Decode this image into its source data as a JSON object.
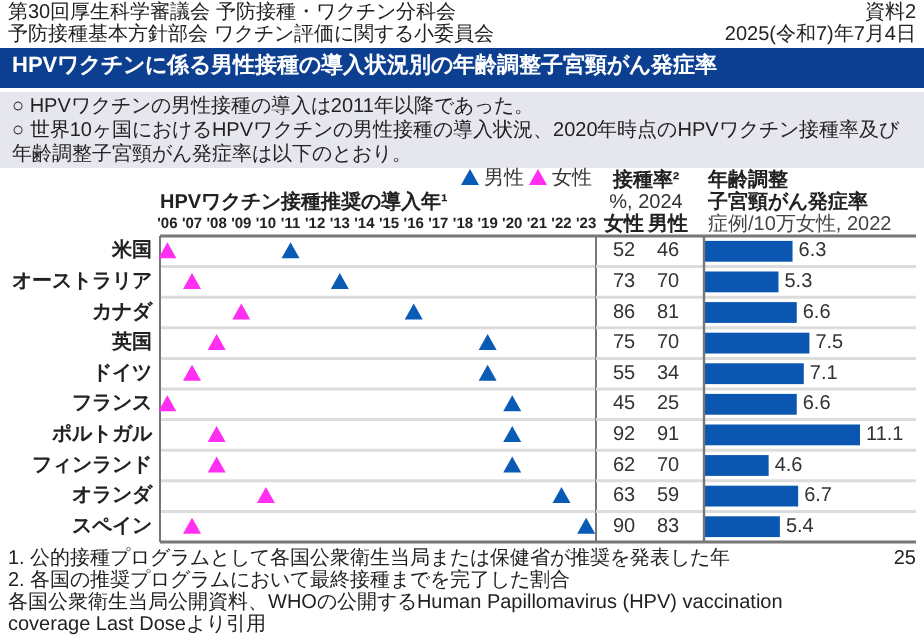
{
  "chart_data": [
    {
      "type": "scatter",
      "orientation": "horizontal",
      "title": "HPVワクチン接種推奨の導入年¹",
      "marker": "triangle",
      "legend": "top right",
      "grid": "y",
      "categories": [
        "米国",
        "オーストラリア",
        "カナダ",
        "英国",
        "ドイツ",
        "フランス",
        "ポルトガル",
        "フィンランド",
        "オランダ",
        "スペイン"
      ],
      "series": [
        {
          "name": "男性",
          "color": "#0a5bb5",
          "values": [
            2011,
            2013,
            2016,
            2019,
            2019,
            2020,
            2020,
            2020,
            2022,
            2023
          ]
        },
        {
          "name": "女性",
          "color": "#ff2ef0",
          "values": [
            2006,
            2007,
            2009,
            2008,
            2007,
            2006,
            2008,
            2008,
            2010,
            2007
          ]
        }
      ],
      "xlim": [
        2005.7,
        2023.4
      ],
      "xticks": [
        {
          "value": 2006,
          "label": "'06"
        },
        {
          "value": 2007,
          "label": "'07"
        },
        {
          "value": 2008,
          "label": "'08"
        },
        {
          "value": 2009,
          "label": "'09"
        },
        {
          "value": 2010,
          "label": "'10"
        },
        {
          "value": 2011,
          "label": "'11"
        },
        {
          "value": 2012,
          "label": "'12"
        },
        {
          "value": 2013,
          "label": "'13"
        },
        {
          "value": 2014,
          "label": "'14"
        },
        {
          "value": 2015,
          "label": "'15"
        },
        {
          "value": 2016,
          "label": "'16"
        },
        {
          "value": 2017,
          "label": "'17"
        },
        {
          "value": 2018,
          "label": "'18"
        },
        {
          "value": 2019,
          "label": "'19"
        },
        {
          "value": 2020,
          "label": "'20"
        },
        {
          "value": 2021,
          "label": "'21"
        },
        {
          "value": 2022,
          "label": "'22"
        },
        {
          "value": 2023,
          "label": "'23"
        }
      ],
      "annotations": [
        "HPVワクチンに係る男性接種の導入状況別の年齢調整子宮頸がん発症率",
        "第30回厚生科学審議会 予防接種・ワクチン分科会",
        "予防接種基本方針部会 ワクチン評価に関する小委員会",
        "2025(令和7)年7月4日",
        "資料2",
        "○ HPVワクチンの男性接種の導入は2011年以降であった。",
        "○ 世界10ヶ国におけるHPVワクチンの男性接種の導入状況、2020年時点のHPVワクチン接種率及び年齢調整子宮頸がん発症率は以下のとおり。",
        "1. 公的接種プログラムとして各国公衆衛生当局または保健省が推奨を発表した年",
        "2. 各国の推奨プログラムにおいて最終接種までを完了した割合",
        "各国公衆衛生当局公開資料、WHOの公開するHuman Papillomavirus (HPV) vaccination coverage Last Doseより引用",
        "25"
      ]
    },
    {
      "type": "other",
      "title": "接種率²",
      "subtitle": "%, 2024",
      "annotations": [
        "女性",
        "男性",
        "52",
        "46",
        "73",
        "70",
        "86",
        "81",
        "75",
        "70",
        "55",
        "34",
        "45",
        "25",
        "92",
        "91",
        "62",
        "70",
        "63",
        "59",
        "90",
        "83"
      ]
    },
    {
      "type": "bar",
      "orientation": "horizontal",
      "title": "年齢調整",
      "subtitle": "子宮頸がん発症率",
      "annotations": [
        "症例/10万女性, 2022"
      ],
      "data_labels": true,
      "color": "#0b56b0",
      "categories": [
        null,
        null,
        null,
        null,
        null,
        null,
        null,
        null,
        null,
        null
      ],
      "values": [
        6.3,
        5.3,
        6.6,
        7.5,
        7.1,
        6.6,
        11.1,
        4.6,
        6.7,
        5.4
      ]
    }
  ]
}
